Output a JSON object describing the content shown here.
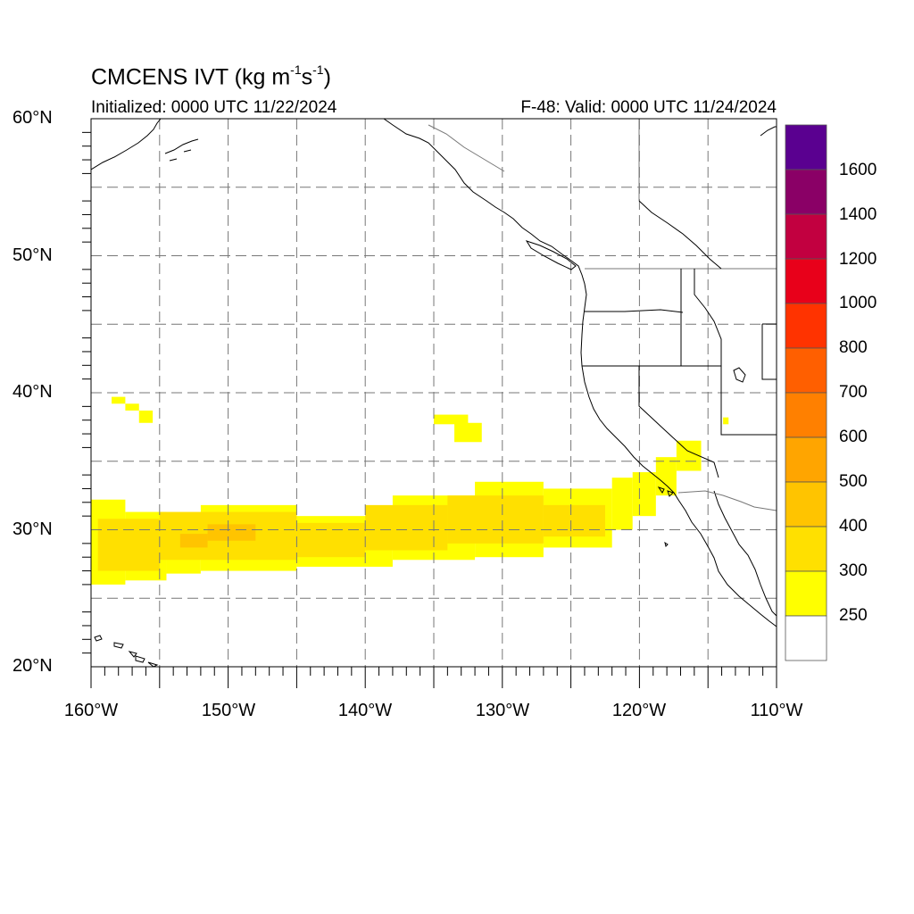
{
  "title": {
    "main": "CMCENS IVT (kg m",
    "sup1": "-1",
    "mid": "s",
    "sup2": "-1",
    "end": ")"
  },
  "subtitle_left": "Initialized: 0000 UTC 11/22/2024",
  "subtitle_right": "F-48: Valid: 0000 UTC 11/24/2024",
  "map": {
    "lon_range": [
      -160,
      -110
    ],
    "lat_range": [
      20,
      60
    ],
    "projection": "cylindrical equidistant",
    "grid_lines": "dashed every 5 degrees",
    "lat_labels": [
      "60°N",
      "50°N",
      "40°N",
      "30°N",
      "20°N"
    ],
    "lon_labels": [
      "160°W",
      "150°W",
      "140°W",
      "130°W",
      "120°W",
      "110°W"
    ]
  },
  "colorbar": {
    "placement": "right",
    "labels": [
      "1600",
      "1400",
      "1200",
      "1000",
      "800",
      "700",
      "600",
      "500",
      "400",
      "300",
      "250"
    ],
    "colors_top_to_bottom": [
      "#5a0090",
      "#8a0066",
      "#c20040",
      "#e8001a",
      "#ff3300",
      "#ff5f00",
      "#ff8000",
      "#ffa500",
      "#ffc400",
      "#ffe000",
      "#ffff00",
      "#ffffff"
    ]
  },
  "ivt_field": {
    "levels": {
      "250": "#ffff00",
      "300": "#ffe000",
      "400": "#ffc400",
      "500": "#ffa500"
    },
    "regions": [
      {
        "level": "250",
        "lon": [
          -160,
          -157.5
        ],
        "lat": [
          26,
          32.2
        ]
      },
      {
        "level": "250",
        "lon": [
          -157.5,
          -154.5
        ],
        "lat": [
          26.3,
          31.3
        ]
      },
      {
        "level": "250",
        "lon": [
          -154.5,
          -152
        ],
        "lat": [
          26.8,
          31.0
        ]
      },
      {
        "level": "250",
        "lon": [
          -152,
          -145
        ],
        "lat": [
          27.0,
          31.8
        ]
      },
      {
        "level": "250",
        "lon": [
          -145,
          -138
        ],
        "lat": [
          27.3,
          31.0
        ]
      },
      {
        "level": "250",
        "lon": [
          -138,
          -132
        ],
        "lat": [
          27.8,
          32.5
        ]
      },
      {
        "level": "250",
        "lon": [
          -132,
          -127
        ],
        "lat": [
          28.0,
          33.5
        ]
      },
      {
        "level": "250",
        "lon": [
          -127,
          -122
        ],
        "lat": [
          28.7,
          33.0
        ]
      },
      {
        "level": "250",
        "lon": [
          -122,
          -120.5
        ],
        "lat": [
          30.0,
          33.8
        ]
      },
      {
        "level": "250",
        "lon": [
          -120.5,
          -118.8
        ],
        "lat": [
          31.0,
          34.2
        ]
      },
      {
        "level": "250",
        "lon": [
          -118.8,
          -117.3
        ],
        "lat": [
          32.5,
          35.3
        ]
      },
      {
        "level": "250",
        "lon": [
          -117.3,
          -115.5
        ],
        "lat": [
          34.3,
          36.5
        ]
      },
      {
        "level": "250",
        "lon": [
          -158.5,
          -157.5
        ],
        "lat": [
          39.2,
          39.7
        ]
      },
      {
        "level": "250",
        "lon": [
          -157.5,
          -156.5
        ],
        "lat": [
          38.7,
          39.2
        ]
      },
      {
        "level": "250",
        "lon": [
          -156.5,
          -155.5
        ],
        "lat": [
          37.8,
          38.7
        ]
      },
      {
        "level": "250",
        "lon": [
          -135.0,
          -132.5
        ],
        "lat": [
          37.7,
          38.4
        ]
      },
      {
        "level": "250",
        "lon": [
          -133.5,
          -131.5
        ],
        "lat": [
          36.4,
          37.8
        ]
      },
      {
        "level": "250",
        "lon": [
          -113.9,
          -113.5
        ],
        "lat": [
          37.7,
          38.2
        ]
      },
      {
        "level": "300",
        "lon": [
          -159.5,
          -155
        ],
        "lat": [
          27.0,
          30.8
        ]
      },
      {
        "level": "300",
        "lon": [
          -155,
          -145
        ],
        "lat": [
          27.8,
          31.3
        ]
      },
      {
        "level": "300",
        "lon": [
          -145,
          -140
        ],
        "lat": [
          28.0,
          30.5
        ]
      },
      {
        "level": "300",
        "lon": [
          -140,
          -134
        ],
        "lat": [
          28.5,
          31.8
        ]
      },
      {
        "level": "300",
        "lon": [
          -134,
          -127
        ],
        "lat": [
          29.0,
          32.5
        ]
      },
      {
        "level": "300",
        "lon": [
          -127,
          -122.5
        ],
        "lat": [
          29.5,
          31.8
        ]
      },
      {
        "level": "400",
        "lon": [
          -151.5,
          -148
        ],
        "lat": [
          29.2,
          30.4
        ]
      },
      {
        "level": "400",
        "lon": [
          -153.5,
          -151.5
        ],
        "lat": [
          28.7,
          29.7
        ]
      }
    ]
  }
}
